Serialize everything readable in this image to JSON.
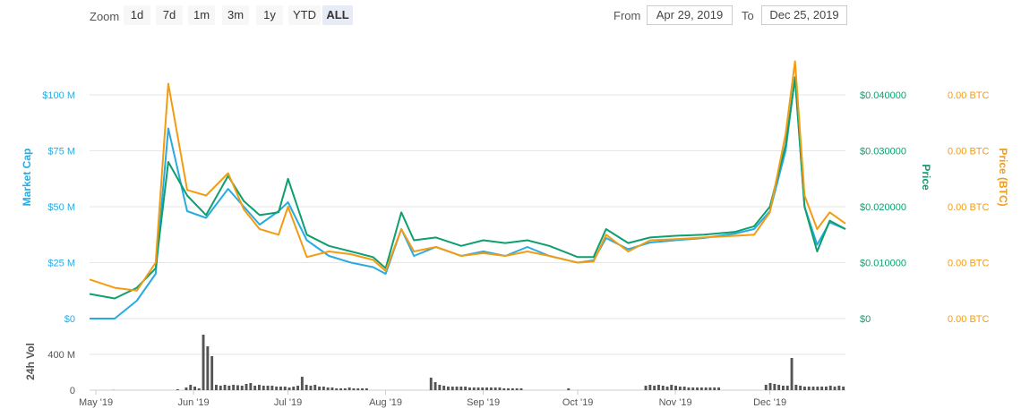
{
  "toolbar": {
    "zoom_label": "Zoom",
    "zoom_buttons": [
      {
        "label": "1d",
        "active": false
      },
      {
        "label": "7d",
        "active": false
      },
      {
        "label": "1m",
        "active": false
      },
      {
        "label": "3m",
        "active": false
      },
      {
        "label": "1y",
        "active": false
      },
      {
        "label": "YTD",
        "active": false
      },
      {
        "label": "ALL",
        "active": true
      }
    ],
    "from_label": "From",
    "from_value": "Apr 29, 2019",
    "to_label": "To",
    "to_value": "Dec 25, 2019"
  },
  "colors": {
    "market_cap": "#29abe2",
    "price": "#0e9f6e",
    "price_btc": "#f39c12",
    "volume": "#555555",
    "grid": "#e6e6e6"
  },
  "chart_data": {
    "type": "line",
    "x": [
      "2019-04-29",
      "2019-05-07",
      "2019-05-14",
      "2019-05-20",
      "2019-05-24",
      "2019-05-30",
      "2019-06-05",
      "2019-06-12",
      "2019-06-17",
      "2019-06-22",
      "2019-06-28",
      "2019-07-01",
      "2019-07-07",
      "2019-07-14",
      "2019-07-21",
      "2019-07-28",
      "2019-08-01",
      "2019-08-06",
      "2019-08-10",
      "2019-08-17",
      "2019-08-25",
      "2019-09-01",
      "2019-09-08",
      "2019-09-15",
      "2019-09-22",
      "2019-10-01",
      "2019-10-06",
      "2019-10-10",
      "2019-10-17",
      "2019-10-24",
      "2019-11-01",
      "2019-11-10",
      "2019-11-20",
      "2019-11-26",
      "2019-12-01",
      "2019-12-06",
      "2019-12-09",
      "2019-12-12",
      "2019-12-16",
      "2019-12-20",
      "2019-12-25"
    ],
    "series": [
      {
        "name": "Market Cap",
        "axis": "Market Cap",
        "values": [
          0,
          0,
          8,
          20,
          85,
          48,
          45,
          58,
          50,
          42,
          48,
          52,
          35,
          28,
          25,
          23,
          20,
          40,
          28,
          32,
          28,
          30,
          28,
          32,
          28,
          25,
          26,
          36,
          31,
          34,
          35,
          36,
          38,
          40,
          48,
          75,
          108,
          50,
          33,
          43,
          40
        ]
      },
      {
        "name": "Price",
        "axis": "Price",
        "values": [
          0.0044,
          0.0036,
          0.0055,
          0.009,
          0.028,
          0.022,
          0.0185,
          0.0255,
          0.021,
          0.0185,
          0.019,
          0.025,
          0.015,
          0.013,
          0.012,
          0.011,
          0.009,
          0.019,
          0.014,
          0.0145,
          0.013,
          0.014,
          0.0135,
          0.014,
          0.013,
          0.011,
          0.011,
          0.016,
          0.0135,
          0.0145,
          0.0148,
          0.015,
          0.0155,
          0.0165,
          0.02,
          0.031,
          0.043,
          0.02,
          0.012,
          0.0175,
          0.016
        ]
      },
      {
        "name": "Price (BTC)",
        "axis": "Price (BTC)",
        "values": [
          0.007,
          0.0055,
          0.005,
          0.01,
          0.042,
          0.023,
          0.022,
          0.026,
          0.0195,
          0.016,
          0.015,
          0.02,
          0.011,
          0.012,
          0.0115,
          0.0105,
          0.0085,
          0.016,
          0.012,
          0.0128,
          0.0112,
          0.0117,
          0.0112,
          0.012,
          0.0112,
          0.01,
          0.0102,
          0.015,
          0.012,
          0.014,
          0.0142,
          0.0145,
          0.0148,
          0.015,
          0.019,
          0.033,
          0.046,
          0.022,
          0.016,
          0.019,
          0.017
        ]
      }
    ],
    "y_axes": {
      "market_cap": {
        "label": "Market Cap",
        "ticks": [
          "$0",
          "$25 M",
          "$50 M",
          "$75 M",
          "$100 M"
        ],
        "range": [
          0,
          100
        ]
      },
      "price": {
        "label": "Price",
        "ticks": [
          "$0",
          "$0.010000",
          "$0.020000",
          "$0.030000",
          "$0.040000"
        ],
        "range": [
          0,
          0.04
        ]
      },
      "price_btc": {
        "label": "Price (BTC)",
        "ticks": [
          "0.00 BTC",
          "0.00 BTC",
          "0.00 BTC",
          "0.00 BTC",
          "0.00 BTC"
        ],
        "range": [
          0,
          0.04
        ]
      }
    },
    "x_ticks": [
      "May '19",
      "Jun '19",
      "Jul '19",
      "Aug '19",
      "Sep '19",
      "Oct '19",
      "Nov '19",
      "Dec '19"
    ],
    "volume": {
      "label": "24h Vol",
      "ticks": [
        "0",
        "400 M"
      ],
      "range": [
        0,
        800
      ],
      "values": [
        0,
        0,
        0,
        0,
        0,
        2,
        0,
        0,
        0,
        0,
        0,
        0,
        0,
        0,
        0,
        0,
        0,
        0,
        0,
        0,
        10,
        0,
        30,
        60,
        40,
        20,
        620,
        490,
        380,
        60,
        50,
        60,
        50,
        60,
        55,
        50,
        70,
        80,
        50,
        60,
        50,
        50,
        50,
        40,
        40,
        40,
        30,
        40,
        50,
        150,
        60,
        50,
        60,
        40,
        40,
        30,
        30,
        20,
        20,
        20,
        30,
        20,
        20,
        20,
        20,
        0,
        0,
        0,
        0,
        0,
        0,
        0,
        0,
        0,
        0,
        0,
        0,
        0,
        0,
        140,
        90,
        60,
        50,
        40,
        40,
        40,
        40,
        40,
        30,
        30,
        30,
        30,
        30,
        30,
        30,
        30,
        20,
        20,
        20,
        20,
        20,
        0,
        0,
        0,
        0,
        0,
        0,
        0,
        0,
        0,
        0,
        20,
        0,
        0,
        0,
        0,
        0,
        0,
        0,
        0,
        0,
        0,
        0,
        0,
        0,
        0,
        0,
        0,
        0,
        50,
        60,
        50,
        60,
        50,
        40,
        60,
        50,
        40,
        40,
        30,
        30,
        30,
        30,
        30,
        30,
        30,
        30,
        0,
        0,
        0,
        0,
        0,
        0,
        0,
        0,
        0,
        0,
        60,
        80,
        70,
        60,
        50,
        50,
        360,
        60,
        50,
        40,
        40,
        40,
        40,
        40,
        40,
        50,
        40,
        50,
        40
      ]
    },
    "grid": true,
    "legend": "none"
  }
}
